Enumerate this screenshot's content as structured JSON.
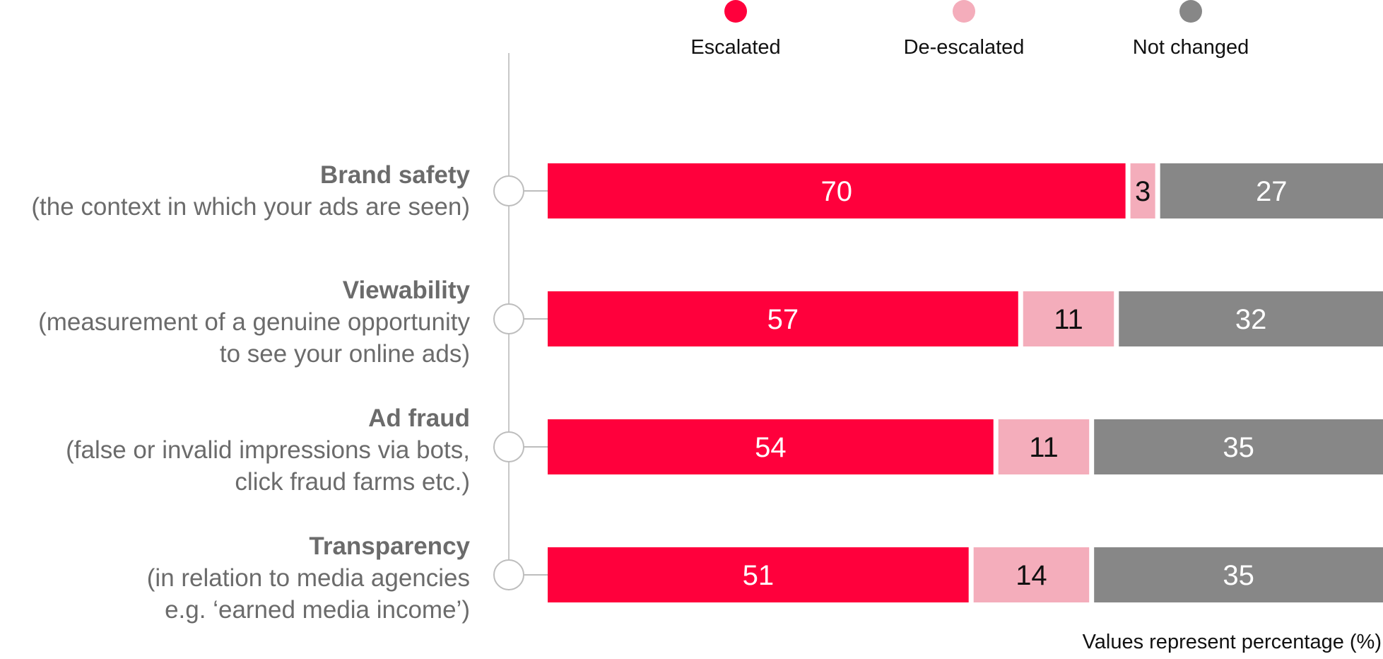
{
  "chart_data": {
    "type": "bar",
    "orientation": "horizontal",
    "stacked": true,
    "categories": [
      {
        "title": "Brand safety",
        "subtitle": [
          "(the context in which your ads are seen)"
        ]
      },
      {
        "title": "Viewability",
        "subtitle": [
          "(measurement of a genuine opportunity",
          "to see your online ads)"
        ]
      },
      {
        "title": "Ad fraud",
        "subtitle": [
          "(false or invalid impressions via bots,",
          "click fraud farms etc.)"
        ]
      },
      {
        "title": "Transparency",
        "subtitle": [
          "(in relation to media agencies",
          "e.g. ‘earned media income’)"
        ]
      }
    ],
    "series": [
      {
        "name": "Escalated",
        "color": "#ff003c",
        "label_color": "#ffffff",
        "values": [
          70,
          57,
          54,
          51
        ]
      },
      {
        "name": "De-escalated",
        "color": "#f4adbb",
        "label_color": "#111111",
        "values": [
          3,
          11,
          11,
          14
        ]
      },
      {
        "name": "Not changed",
        "color": "#878787",
        "label_color": "#ffffff",
        "values": [
          27,
          32,
          35,
          35
        ]
      }
    ],
    "xlim": [
      0,
      100
    ],
    "legend_position": "top",
    "grid": false,
    "note": "Values represent percentage (%)"
  }
}
